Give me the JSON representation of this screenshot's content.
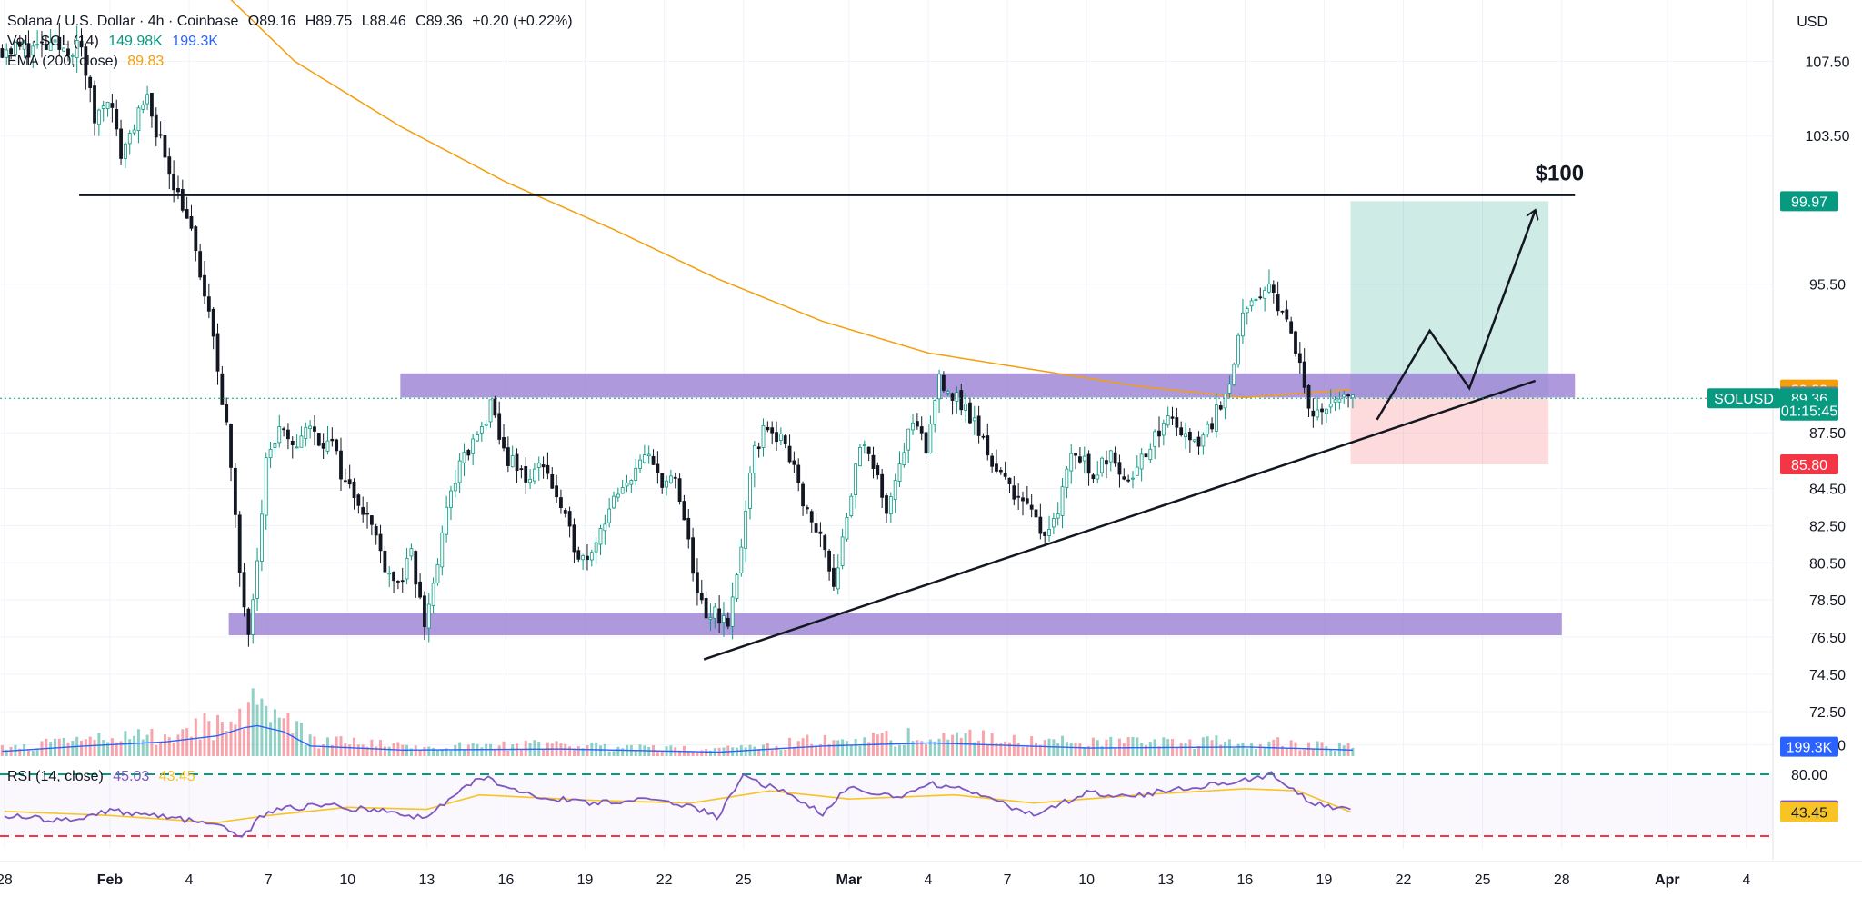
{
  "header": {
    "symbol": "Solana / U.S. Dollar · 4h · Coinbase",
    "open": "O89.16",
    "high": "H89.75",
    "low": "L88.46",
    "close": "C89.36",
    "change": "+0.20 (+0.22%)",
    "vol_label": "Vol · SOL (14)",
    "vol_value_1": "149.98K",
    "vol_value_2": "199.3K",
    "ema_label": "EMA (200, close)",
    "ema_value": "89.83",
    "rsi_label": "RSI (14, close)",
    "rsi_value": "45.03",
    "rsi_ma_value": "43.45",
    "currency": "USD"
  },
  "chart_data": {
    "type": "candlestick",
    "title": "Solana / U.S. Dollar · 4h · Coinbase",
    "price_axis": {
      "ticks": [
        107.5,
        103.5,
        95.5,
        87.5,
        84.5,
        82.5,
        80.5,
        78.5,
        76.5,
        74.5,
        72.5,
        70.7
      ],
      "tick_labels": [
        "107.50",
        "103.50",
        "95.50",
        "87.50",
        "84.50",
        "82.50",
        "80.50",
        "78.50",
        "76.50",
        "74.50",
        "72.50",
        "70.70"
      ],
      "ylim": [
        69.8,
        110.8
      ]
    },
    "x_axis": {
      "ticks": [
        {
          "label": "28",
          "date": "2026-01-28"
        },
        {
          "label": "Feb",
          "date": "2026-02-01"
        },
        {
          "label": "4",
          "date": "2026-02-04"
        },
        {
          "label": "7",
          "date": "2026-02-07"
        },
        {
          "label": "10",
          "date": "2026-02-10"
        },
        {
          "label": "13",
          "date": "2026-02-13"
        },
        {
          "label": "16",
          "date": "2026-02-16"
        },
        {
          "label": "19",
          "date": "2026-02-19"
        },
        {
          "label": "22",
          "date": "2026-02-22"
        },
        {
          "label": "25",
          "date": "2026-02-25"
        },
        {
          "label": "Mar",
          "date": "2026-03-01"
        },
        {
          "label": "4",
          "date": "2026-03-04"
        },
        {
          "label": "7",
          "date": "2026-03-07"
        },
        {
          "label": "10",
          "date": "2026-03-10"
        },
        {
          "label": "13",
          "date": "2026-03-13"
        },
        {
          "label": "16",
          "date": "2026-03-16"
        },
        {
          "label": "19",
          "date": "2026-03-19"
        },
        {
          "label": "22",
          "date": "2026-03-22"
        },
        {
          "label": "25",
          "date": "2026-03-25"
        },
        {
          "label": "28",
          "date": "2026-03-28"
        },
        {
          "label": "Apr",
          "date": "2026-04-01"
        },
        {
          "label": "4",
          "date": "2026-04-04"
        }
      ],
      "xlim": [
        "2026-01-27 20:00",
        "2026-04-05 00:00"
      ]
    },
    "price_path": [
      [
        "2026-01-31 00:00",
        108.2
      ],
      [
        "2026-01-31 12:00",
        104.4
      ],
      [
        "2026-02-01 00:00",
        105.8
      ],
      [
        "2026-02-01 12:00",
        102.5
      ],
      [
        "2026-02-02 00:00",
        104.2
      ],
      [
        "2026-02-02 12:00",
        105.3
      ],
      [
        "2026-02-03 00:00",
        103.2
      ],
      [
        "2026-02-03 12:00",
        101.0
      ],
      [
        "2026-02-04 00:00",
        99.2
      ],
      [
        "2026-02-04 12:00",
        96.0
      ],
      [
        "2026-02-05 00:00",
        92.5
      ],
      [
        "2026-02-05 12:00",
        88.0
      ],
      [
        "2026-02-06 00:00",
        80.0
      ],
      [
        "2026-02-06 08:00",
        77.0
      ],
      [
        "2026-02-06 16:00",
        81.0
      ],
      [
        "2026-02-07 00:00",
        86.0
      ],
      [
        "2026-02-07 12:00",
        87.6
      ],
      [
        "2026-02-08 00:00",
        86.5
      ],
      [
        "2026-02-08 12:00",
        87.9
      ],
      [
        "2026-02-09 00:00",
        87.2
      ],
      [
        "2026-02-09 12:00",
        86.8
      ],
      [
        "2026-02-10 00:00",
        84.8
      ],
      [
        "2026-02-10 12:00",
        84.0
      ],
      [
        "2026-02-11 00:00",
        82.5
      ],
      [
        "2026-02-11 12:00",
        80.5
      ],
      [
        "2026-02-12 00:00",
        79.3
      ],
      [
        "2026-02-12 12:00",
        80.8
      ],
      [
        "2026-02-13 00:00",
        77.2
      ],
      [
        "2026-02-13 12:00",
        80.5
      ],
      [
        "2026-02-14 00:00",
        84.5
      ],
      [
        "2026-02-14 12:00",
        86.2
      ],
      [
        "2026-02-15 00:00",
        87.2
      ],
      [
        "2026-02-15 12:00",
        88.8
      ],
      [
        "2026-02-16 00:00",
        86.5
      ],
      [
        "2026-02-16 12:00",
        85.5
      ],
      [
        "2026-02-17 00:00",
        85.0
      ],
      [
        "2026-02-17 12:00",
        86.0
      ],
      [
        "2026-02-18 00:00",
        84.0
      ],
      [
        "2026-02-18 12:00",
        82.0
      ],
      [
        "2026-02-19 00:00",
        80.7
      ],
      [
        "2026-02-19 12:00",
        81.8
      ],
      [
        "2026-02-20 00:00",
        83.5
      ],
      [
        "2026-02-20 12:00",
        84.2
      ],
      [
        "2026-02-21 00:00",
        85.8
      ],
      [
        "2026-02-21 12:00",
        86.0
      ],
      [
        "2026-02-22 00:00",
        85.0
      ],
      [
        "2026-02-22 12:00",
        84.8
      ],
      [
        "2026-02-23 00:00",
        81.5
      ],
      [
        "2026-02-23 08:00",
        79.0
      ],
      [
        "2026-02-23 16:00",
        77.2
      ],
      [
        "2026-02-24 00:00",
        78.0
      ],
      [
        "2026-02-24 12:00",
        77.0
      ],
      [
        "2026-02-25 00:00",
        81.5
      ],
      [
        "2026-02-25 12:00",
        86.5
      ],
      [
        "2026-02-26 00:00",
        88.0
      ],
      [
        "2026-02-26 12:00",
        87.0
      ],
      [
        "2026-02-27 00:00",
        86.0
      ],
      [
        "2026-02-27 12:00",
        83.0
      ],
      [
        "2026-02-28 00:00",
        82.0
      ],
      [
        "2026-02-28 12:00",
        79.5
      ],
      [
        "2026-03-01 00:00",
        83.0
      ],
      [
        "2026-03-01 12:00",
        87.0
      ],
      [
        "2026-03-02 00:00",
        85.5
      ],
      [
        "2026-03-02 12:00",
        83.5
      ],
      [
        "2026-03-03 00:00",
        86.0
      ],
      [
        "2026-03-03 12:00",
        88.0
      ],
      [
        "2026-03-04 00:00",
        86.5
      ],
      [
        "2026-03-04 12:00",
        90.6
      ],
      [
        "2026-03-05 00:00",
        89.5
      ],
      [
        "2026-03-05 12:00",
        88.8
      ],
      [
        "2026-03-06 00:00",
        87.5
      ],
      [
        "2026-03-06 12:00",
        86.0
      ],
      [
        "2026-03-07 00:00",
        84.8
      ],
      [
        "2026-03-07 12:00",
        84.2
      ],
      [
        "2026-03-08 00:00",
        83.0
      ],
      [
        "2026-03-08 12:00",
        82.2
      ],
      [
        "2026-03-09 00:00",
        83.5
      ],
      [
        "2026-03-09 12:00",
        86.5
      ],
      [
        "2026-03-10 00:00",
        86.0
      ],
      [
        "2026-03-10 12:00",
        85.2
      ],
      [
        "2026-03-11 00:00",
        86.8
      ],
      [
        "2026-03-11 12:00",
        85.0
      ],
      [
        "2026-03-12 00:00",
        85.8
      ],
      [
        "2026-03-12 12:00",
        86.5
      ],
      [
        "2026-03-13 00:00",
        88.2
      ],
      [
        "2026-03-13 12:00",
        88.0
      ],
      [
        "2026-03-14 00:00",
        86.8
      ],
      [
        "2026-03-14 12:00",
        87.3
      ],
      [
        "2026-03-15 00:00",
        88.6
      ],
      [
        "2026-03-15 12:00",
        90.5
      ],
      [
        "2026-03-16 00:00",
        93.5
      ],
      [
        "2026-03-16 12:00",
        94.5
      ],
      [
        "2026-03-17 00:00",
        95.2
      ],
      [
        "2026-03-17 12:00",
        94.2
      ],
      [
        "2026-03-18 00:00",
        92.0
      ],
      [
        "2026-03-18 12:00",
        89.0
      ],
      [
        "2026-03-19 00:00",
        88.6
      ],
      [
        "2026-03-19 12:00",
        89.0
      ],
      [
        "2026-03-20 00:00",
        89.36
      ]
    ],
    "ema_200_path": [
      [
        "2026-02-04 00:00",
        113.0
      ],
      [
        "2026-02-08 00:00",
        107.5
      ],
      [
        "2026-02-12 00:00",
        104.0
      ],
      [
        "2026-02-16 00:00",
        101.0
      ],
      [
        "2026-02-20 00:00",
        98.5
      ],
      [
        "2026-02-24 00:00",
        95.8
      ],
      [
        "2026-02-28 00:00",
        93.5
      ],
      [
        "2026-03-04 00:00",
        91.8
      ],
      [
        "2026-03-08 00:00",
        90.9
      ],
      [
        "2026-03-12 00:00",
        90.0
      ],
      [
        "2026-03-16 00:00",
        89.4
      ],
      [
        "2026-03-20 00:00",
        89.83
      ]
    ],
    "volume_path": [
      [
        "2026-01-28 00:00",
        0.05
      ],
      [
        "2026-01-31 00:00",
        0.1
      ],
      [
        "2026-02-03 00:00",
        0.14
      ],
      [
        "2026-02-05 00:00",
        0.2
      ],
      [
        "2026-02-06 00:00",
        0.28
      ],
      [
        "2026-02-06 12:00",
        0.3
      ],
      [
        "2026-02-07 12:00",
        0.24
      ],
      [
        "2026-02-08 12:00",
        0.1
      ],
      [
        "2026-02-12 00:00",
        0.06
      ],
      [
        "2026-02-18 00:00",
        0.07
      ],
      [
        "2026-02-24 00:00",
        0.04
      ],
      [
        "2026-02-28 00:00",
        0.1
      ],
      [
        "2026-03-04 00:00",
        0.13
      ],
      [
        "2026-03-10 00:00",
        0.08
      ],
      [
        "2026-03-16 00:00",
        0.09
      ],
      [
        "2026-03-20 00:00",
        0.06
      ]
    ],
    "rsi": {
      "levels": [
        80,
        20
      ],
      "rsi_path": [
        [
          "2026-01-28 00:00",
          40
        ],
        [
          "2026-01-30 00:00",
          35
        ],
        [
          "2026-02-01 00:00",
          44
        ],
        [
          "2026-02-03 00:00",
          40
        ],
        [
          "2026-02-05 00:00",
          30
        ],
        [
          "2026-02-06 00:00",
          20
        ],
        [
          "2026-02-07 00:00",
          45
        ],
        [
          "2026-02-09 00:00",
          50
        ],
        [
          "2026-02-11 00:00",
          45
        ],
        [
          "2026-02-13 00:00",
          38
        ],
        [
          "2026-02-15 00:00",
          78
        ],
        [
          "2026-02-17 00:00",
          60
        ],
        [
          "2026-02-19 00:00",
          52
        ],
        [
          "2026-02-21 00:00",
          55
        ],
        [
          "2026-02-23 00:00",
          50
        ],
        [
          "2026-02-24 00:00",
          38
        ],
        [
          "2026-02-25 00:00",
          78
        ],
        [
          "2026-02-27 00:00",
          58
        ],
        [
          "2026-02-28 00:00",
          40
        ],
        [
          "2026-03-01 00:00",
          68
        ],
        [
          "2026-03-03 00:00",
          56
        ],
        [
          "2026-03-04 00:00",
          72
        ],
        [
          "2026-03-06 00:00",
          60
        ],
        [
          "2026-03-08 00:00",
          40
        ],
        [
          "2026-03-10 00:00",
          62
        ],
        [
          "2026-03-12 00:00",
          60
        ],
        [
          "2026-03-14 00:00",
          68
        ],
        [
          "2026-03-16 00:00",
          74
        ],
        [
          "2026-03-17 00:00",
          80
        ],
        [
          "2026-03-18 00:00",
          60
        ],
        [
          "2026-03-19 00:00",
          48
        ],
        [
          "2026-03-20 00:00",
          45.03
        ]
      ],
      "rsi_ma_path": [
        [
          "2026-01-28 00:00",
          44
        ],
        [
          "2026-02-01 00:00",
          40
        ],
        [
          "2026-02-05 00:00",
          33
        ],
        [
          "2026-02-07 00:00",
          40
        ],
        [
          "2026-02-10 00:00",
          48
        ],
        [
          "2026-02-13 00:00",
          46
        ],
        [
          "2026-02-15 00:00",
          60
        ],
        [
          "2026-02-19 00:00",
          55
        ],
        [
          "2026-02-23 00:00",
          52
        ],
        [
          "2026-02-26 00:00",
          64
        ],
        [
          "2026-03-01 00:00",
          56
        ],
        [
          "2026-03-05 00:00",
          60
        ],
        [
          "2026-03-08 00:00",
          52
        ],
        [
          "2026-03-12 00:00",
          60
        ],
        [
          "2026-03-16 00:00",
          66
        ],
        [
          "2026-03-18 00:00",
          64
        ],
        [
          "2026-03-20 00:00",
          43.45
        ]
      ]
    },
    "annotations": {
      "resistance_label": "$100",
      "resistance_level": 100.3,
      "upper_zone": [
        89.4,
        90.7
      ],
      "lower_zone": [
        76.6,
        77.8
      ],
      "trendline": [
        [
          "2026-02-23 12:00",
          75.3
        ],
        [
          "2026-03-27 00:00",
          90.3
        ]
      ],
      "long_position": {
        "entry": 89.36,
        "target": 99.97,
        "stop": 85.8,
        "start": "2026-03-20 00:00",
        "end": "2026-03-27 12:00"
      },
      "projection_path": [
        [
          "2026-03-21 00:00",
          88.2
        ],
        [
          "2026-03-23 00:00",
          93.0
        ],
        [
          "2026-03-24 12:00",
          89.9
        ],
        [
          "2026-03-27 00:00",
          99.5
        ]
      ]
    },
    "price_labels": [
      {
        "label": "99.97",
        "value": 99.97,
        "color": "#089981"
      },
      {
        "label": "89.83",
        "value": 89.83,
        "color": "#f59e0b"
      },
      {
        "label": "89.45",
        "value": 89.45,
        "color": "#787b86"
      },
      {
        "label": "SOLUSD",
        "value": 89.36,
        "color": "#089981"
      },
      {
        "label": "89.36",
        "value": 89.36,
        "color": "#089981"
      },
      {
        "label": "01:15:45",
        "value": 88.7,
        "color": "#089981"
      },
      {
        "label": "85.80",
        "value": 85.8,
        "color": "#f23645"
      },
      {
        "label": "199.3K",
        "value": 70.6,
        "color": "#2962ff"
      },
      {
        "label": "80.00",
        "value": 80,
        "color": "#131722",
        "pane": "rsi"
      },
      {
        "label": "45.03",
        "value": 45.03,
        "color": "#7e57c2",
        "pane": "rsi"
      },
      {
        "label": "43.45",
        "value": 43.45,
        "color": "#f7c325",
        "pane": "rsi"
      }
    ]
  },
  "colors": {
    "up": "#089981",
    "down": "#f23645",
    "ema": "#f59e0b",
    "zone": "#9b7fd4",
    "volume_ma": "#2962ff",
    "rsi": "#7e57c2",
    "rsi_ma": "#f7c325"
  }
}
